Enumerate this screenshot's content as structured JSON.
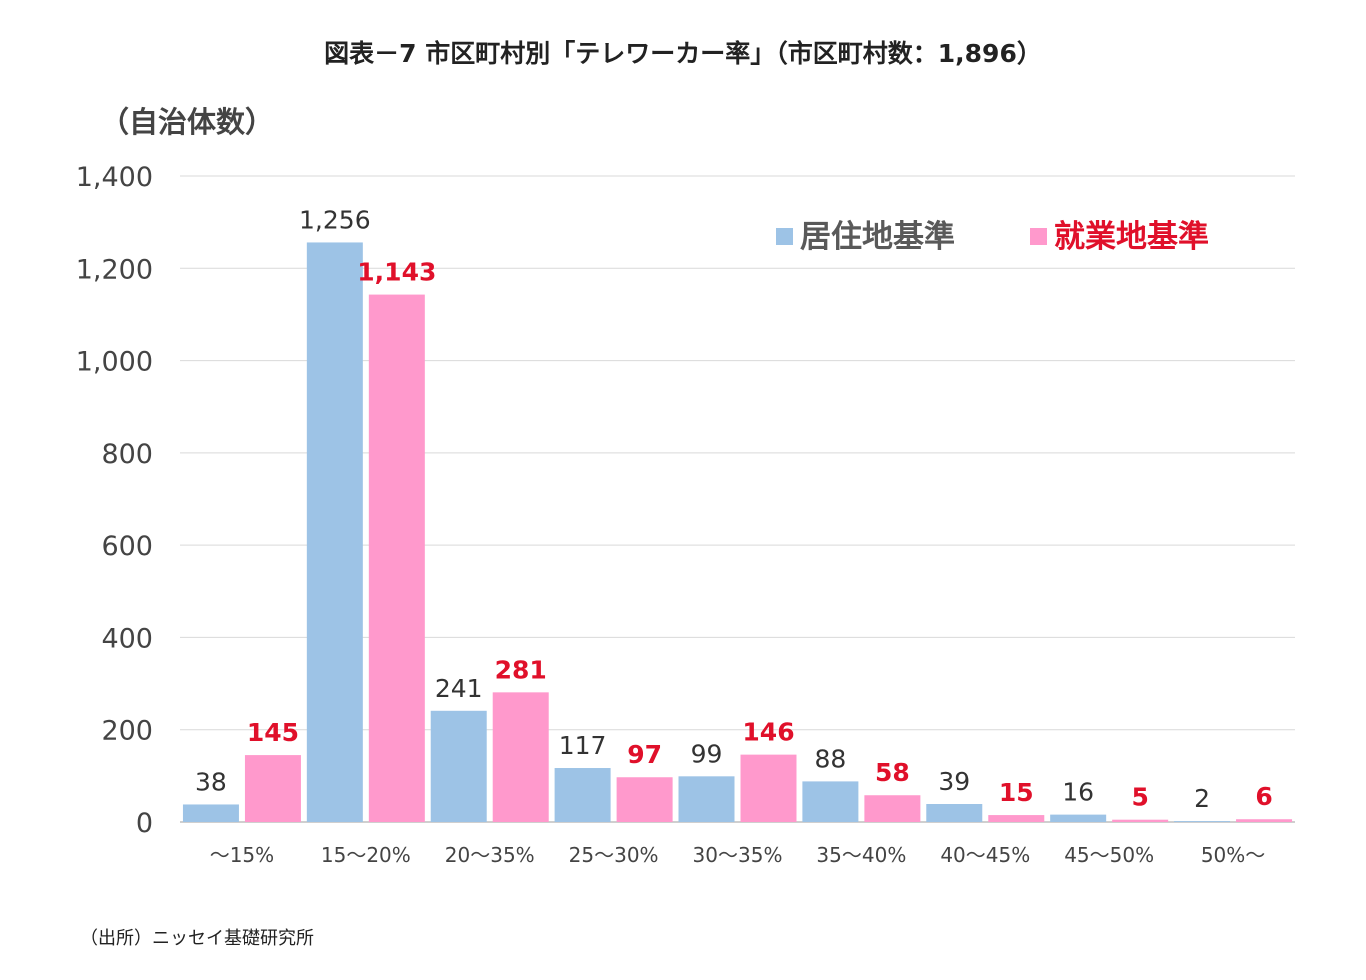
{
  "chart_data": {
    "type": "bar",
    "title": "図表－7 市区町村別「テレワーカー率」（市区町村数：1,896）",
    "ylabel": "（自治体数）",
    "xlabel": "",
    "ylim": [
      0,
      1400
    ],
    "yticks": [
      0,
      200,
      400,
      600,
      800,
      1000,
      1200,
      1400
    ],
    "ytick_labels": [
      "0",
      "200",
      "400",
      "600",
      "800",
      "1,000",
      "1,200",
      "1,400"
    ],
    "grid": true,
    "legend_position": "top-right",
    "categories": [
      "～15%",
      "15～20%",
      "20～35%",
      "25～30%",
      "30～35%",
      "35～40%",
      "40～45%",
      "45～50%",
      "50%～"
    ],
    "series": [
      {
        "name": "居住地基準",
        "color": "#9DC3E6",
        "label_color": "#333333",
        "values": [
          38,
          1256,
          241,
          117,
          99,
          88,
          39,
          16,
          2
        ],
        "value_labels": [
          "38",
          "1,256",
          "241",
          "117",
          "99",
          "88",
          "39",
          "16",
          "2"
        ]
      },
      {
        "name": "就業地基準",
        "color": "#FF99CC",
        "label_color": "#E0102A",
        "values": [
          145,
          1143,
          281,
          97,
          146,
          58,
          15,
          5,
          6
        ],
        "value_labels": [
          "145",
          "1,143",
          "281",
          "97",
          "146",
          "58",
          "15",
          "5",
          "6"
        ]
      }
    ]
  },
  "source": "（出所）ニッセイ基礎研究所"
}
